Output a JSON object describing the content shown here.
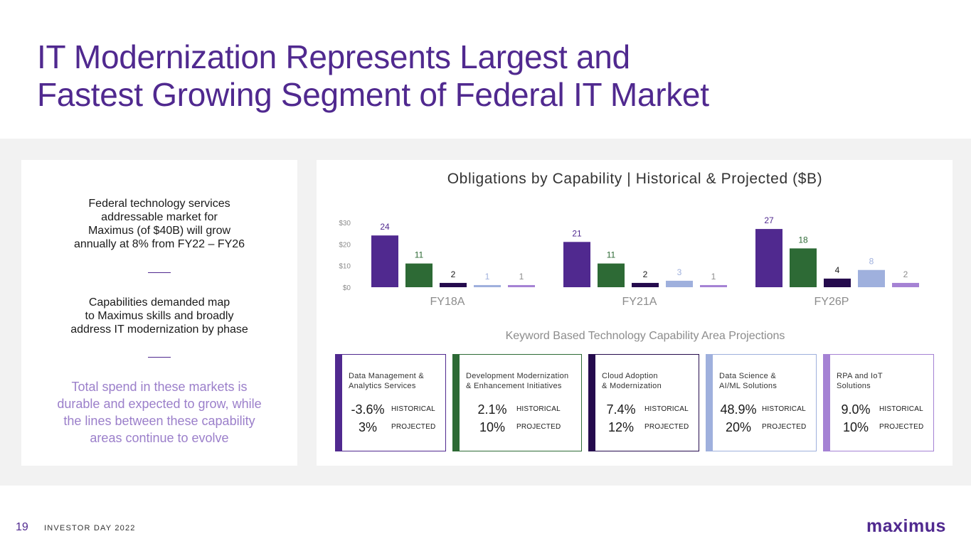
{
  "title": {
    "line1": "IT Modernization Represents Largest and",
    "line2": "Fastest Growing Segment of Federal IT Market"
  },
  "left_panel": {
    "block1": [
      "Federal technology services",
      "addressable market for",
      "Maximus (of $40B) will grow",
      "annually at 8% from FY22 – FY26"
    ],
    "block2": [
      "Capabilities demanded map",
      "to Maximus skills and broadly",
      "address IT modernization by phase"
    ],
    "highlight": [
      "Total spend in these markets is",
      "durable and expected to grow, while",
      "the lines between these capability",
      "areas continue to evolve"
    ]
  },
  "chart_data": {
    "type": "bar",
    "title": "Obligations by Capability | Historical & Projected ($B)",
    "categories": [
      "FY18A",
      "FY21A",
      "FY26P"
    ],
    "ylim": [
      0,
      30
    ],
    "yticks": [
      "$0",
      "$10",
      "$20",
      "$30"
    ],
    "ytick_values": [
      0,
      10,
      20,
      30
    ],
    "grid": false,
    "series": [
      {
        "values": [
          24,
          21,
          27
        ],
        "color": "#50298f",
        "label_color": "#50298f"
      },
      {
        "values": [
          11,
          11,
          18
        ],
        "color": "#2d6a35",
        "label_color": "#2d6a35"
      },
      {
        "values": [
          2,
          2,
          4
        ],
        "color": "#250b4d",
        "label_color": "#1a1a1a"
      },
      {
        "values": [
          1,
          3,
          8
        ],
        "color": "#9fb0dd",
        "label_color": "#9fb0dd"
      },
      {
        "values": [
          1,
          1,
          2
        ],
        "color": "#a582d4",
        "label_color": "#8c8c8c"
      }
    ]
  },
  "subtitle": "Keyword Based Technology Capability Area Projections",
  "cards": [
    {
      "title": "Data Management &\nAnalytics Services",
      "historical": "-3.6%",
      "projected": "3%",
      "color": "#50298f"
    },
    {
      "title": "Development Modernization\n& Enhancement Initiatives",
      "historical": "2.1%",
      "projected": "10%",
      "color": "#2d6a35"
    },
    {
      "title": "Cloud Adoption\n& Modernization",
      "historical": "7.4%",
      "projected": "12%",
      "color": "#250b4d"
    },
    {
      "title": "Data Science &\nAI/ML Solutions",
      "historical": "48.9%",
      "projected": "20%",
      "color": "#9fb0dd"
    },
    {
      "title": "RPA and IoT\nSolutions",
      "historical": "9.0%",
      "projected": "10%",
      "color": "#a582d4"
    }
  ],
  "labels": {
    "historical": "HISTORICAL",
    "projected": "PROJECTED"
  },
  "footer": {
    "page": "19",
    "text": "INVESTOR DAY 2022",
    "logo": "maximus"
  }
}
